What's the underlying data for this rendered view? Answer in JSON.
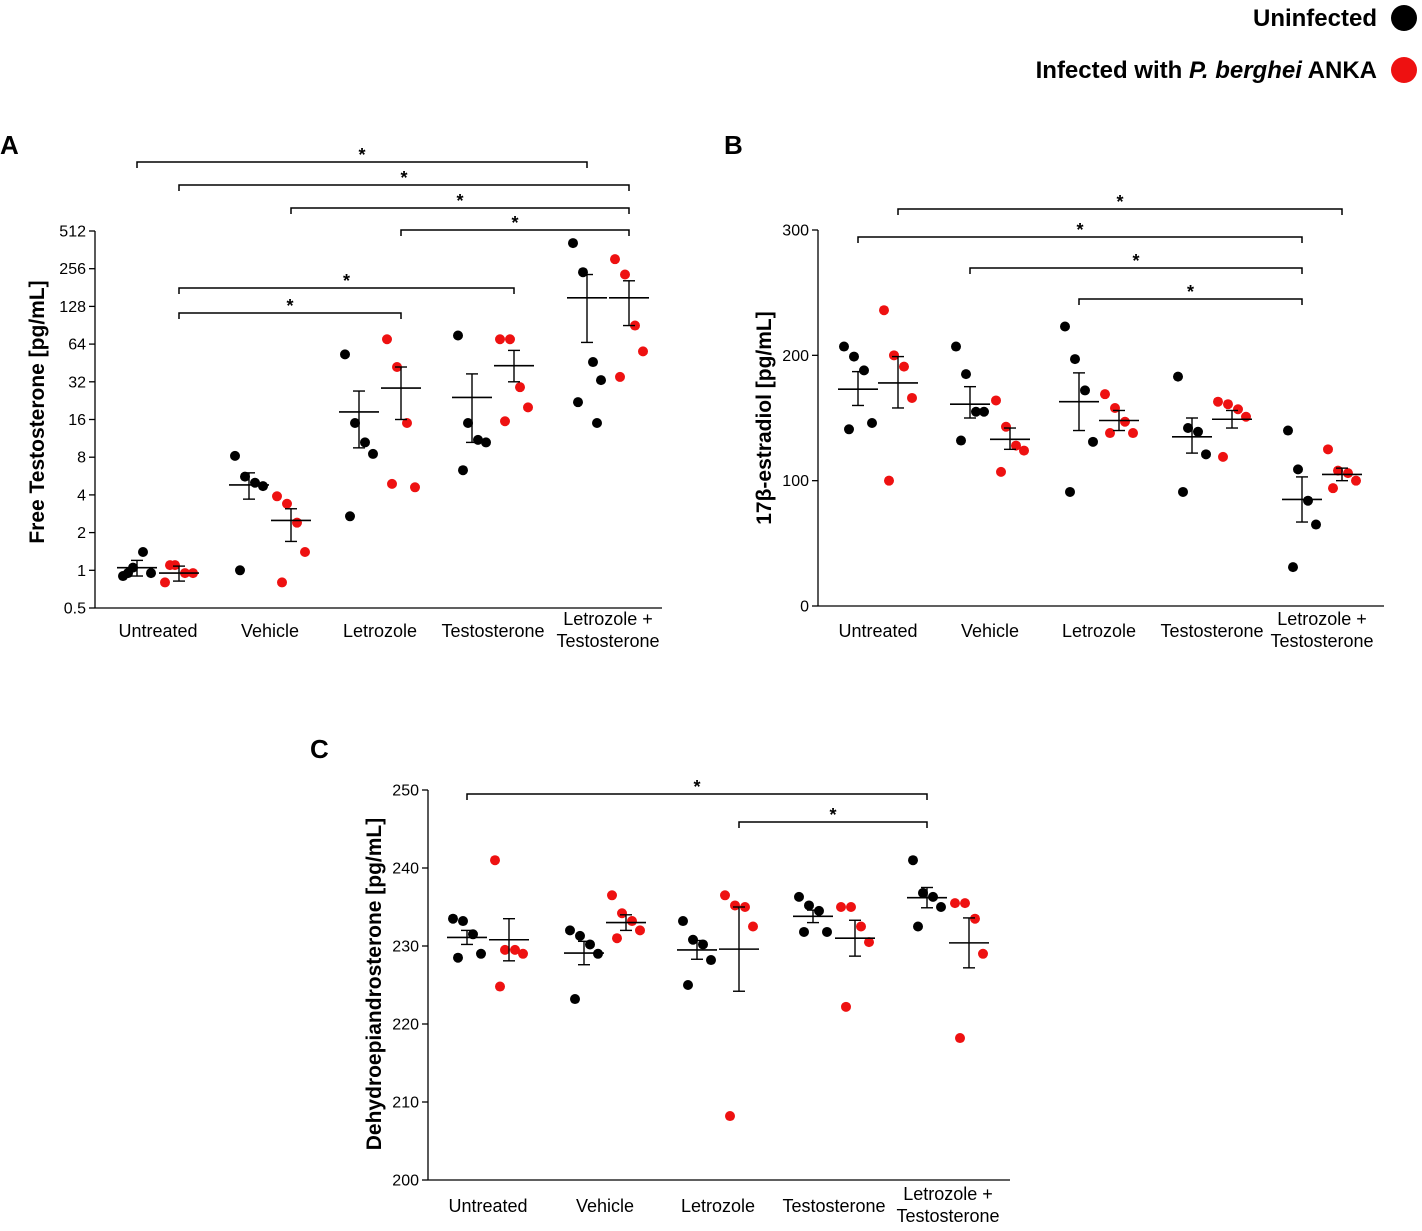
{
  "legend": {
    "uninfected": "Uninfected",
    "infected_prefix": "Infected with ",
    "infected_italic": "P. berghei",
    "infected_suffix": " ANKA",
    "color_uninfected": "#000000",
    "color_infected": "#ee1111"
  },
  "chart_data": [
    {
      "panel": "A",
      "type": "scatter",
      "ylabel": "Free Testosterone [pg/mL]",
      "yscale": "log2",
      "ylim": [
        0.5,
        512
      ],
      "yticks": [
        0.5,
        1,
        2,
        4,
        8,
        16,
        32,
        64,
        128,
        256,
        512
      ],
      "ytick_labels": [
        "0.5",
        "1",
        "2",
        "4",
        "8",
        "16",
        "32",
        "64",
        "128",
        "256",
        "512"
      ],
      "categories": [
        [
          "Untreated"
        ],
        [
          "Vehicle"
        ],
        [
          "Letrozole"
        ],
        [
          "Testosterone"
        ],
        [
          "Letrozole +",
          "Testosterone"
        ]
      ],
      "series": [
        {
          "name": "Uninfected",
          "points": [
            [
              0.9,
              1.05,
              1.4,
              0.95,
              0.95
            ],
            [
              8.2,
              5.6,
              5.0,
              4.7,
              1.0
            ],
            [
              53,
              15,
              10.5,
              8.5,
              2.7
            ],
            [
              75,
              15,
              11,
              10.5,
              6.3
            ],
            [
              410,
              240,
              46,
              33,
              22,
              15
            ]
          ],
          "mean": [
            1.05,
            4.8,
            18.4,
            24,
            150
          ],
          "sem_low": [
            0.9,
            3.7,
            9.5,
            10.5,
            66
          ],
          "sem_high": [
            1.2,
            6.0,
            27,
            37,
            230
          ]
        },
        {
          "name": "Infected with P. berghei ANKA",
          "points": [
            [
              0.8,
              1.1,
              0.95,
              0.95,
              1.1
            ],
            [
              3.9,
              3.4,
              2.4,
              1.4,
              0.8
            ],
            [
              70,
              42,
              15,
              4.6,
              4.9
            ],
            [
              70,
              70,
              29,
              20,
              15.5
            ],
            [
              305,
              230,
              90,
              56,
              35
            ]
          ],
          "mean": [
            0.95,
            2.5,
            28.5,
            43,
            150
          ],
          "sem_low": [
            0.82,
            1.7,
            16,
            32,
            90
          ],
          "sem_high": [
            1.08,
            3.1,
            42,
            57,
            205
          ]
        }
      ],
      "significance": [
        {
          "from": [
            0,
            0
          ],
          "to": [
            4,
            0
          ],
          "label": "*"
        },
        {
          "from": [
            0,
            1
          ],
          "to": [
            4,
            1
          ],
          "label": "*"
        },
        {
          "from": [
            1,
            1
          ],
          "to": [
            4,
            1
          ],
          "label": "*"
        },
        {
          "from": [
            2,
            1
          ],
          "to": [
            4,
            1
          ],
          "label": "*"
        },
        {
          "from": [
            0,
            1
          ],
          "to": [
            3,
            1
          ],
          "label": "*"
        },
        {
          "from": [
            0,
            1
          ],
          "to": [
            2,
            1
          ],
          "label": "*"
        }
      ]
    },
    {
      "panel": "B",
      "type": "scatter",
      "ylabel": "17β-estradiol [pg/mL]",
      "yscale": "linear",
      "ylim": [
        0,
        300
      ],
      "yticks": [
        0,
        100,
        200,
        300
      ],
      "ytick_labels": [
        "0",
        "100",
        "200",
        "300"
      ],
      "categories": [
        [
          "Untreated"
        ],
        [
          "Vehicle"
        ],
        [
          "Letrozole"
        ],
        [
          "Testosterone"
        ],
        [
          "Letrozole +",
          "Testosterone"
        ]
      ],
      "series": [
        {
          "name": "Uninfected",
          "points": [
            [
              207,
              199,
              188,
              146,
              141
            ],
            [
              207,
              185,
              155,
              155,
              132
            ],
            [
              223,
              197,
              172,
              131,
              91
            ],
            [
              183,
              142,
              139,
              121,
              91
            ],
            [
              140,
              109,
              84,
              65,
              31
            ]
          ],
          "mean": [
            173,
            161,
            163,
            135,
            85
          ],
          "sem_low": [
            160,
            150,
            140,
            122,
            67
          ],
          "sem_high": [
            187,
            175,
            186,
            150,
            103
          ]
        },
        {
          "name": "Infected with P. berghei ANKA",
          "points": [
            [
              236,
              200,
              191,
              166,
              100
            ],
            [
              164,
              143,
              128,
              124,
              107
            ],
            [
              169,
              158,
              147,
              138,
              138
            ],
            [
              163,
              161,
              157,
              151,
              119
            ],
            [
              125,
              108,
              106,
              100,
              94
            ]
          ],
          "mean": [
            178,
            133,
            148,
            149,
            105
          ],
          "sem_low": [
            158,
            125,
            140,
            142,
            100
          ],
          "sem_high": [
            199,
            142,
            156,
            156,
            110
          ]
        }
      ],
      "significance": [
        {
          "from": [
            0,
            1
          ],
          "to": [
            4,
            1
          ],
          "label": "*"
        },
        {
          "from": [
            0,
            0
          ],
          "to": [
            4,
            0
          ],
          "label": "*"
        },
        {
          "from": [
            1,
            0
          ],
          "to": [
            4,
            0
          ],
          "label": "*"
        },
        {
          "from": [
            2,
            0
          ],
          "to": [
            4,
            0
          ],
          "label": "*"
        }
      ]
    },
    {
      "panel": "C",
      "type": "scatter",
      "ylabel": "Dehydroepiandrosterone [pg/mL]",
      "yscale": "linear",
      "ylim": [
        200,
        250
      ],
      "yticks": [
        200,
        210,
        220,
        230,
        240,
        250
      ],
      "ytick_labels": [
        "200",
        "210",
        "220",
        "230",
        "240",
        "250"
      ],
      "categories": [
        [
          "Untreated"
        ],
        [
          "Vehicle"
        ],
        [
          "Letrozole"
        ],
        [
          "Testosterone"
        ],
        [
          "Letrozole +",
          "Testosterone"
        ]
      ],
      "series": [
        {
          "name": "Uninfected",
          "points": [
            [
              233.5,
              233.2,
              231.5,
              229.0,
              228.5
            ],
            [
              232.0,
              231.3,
              230.2,
              229.0,
              223.2
            ],
            [
              233.2,
              230.8,
              230.2,
              228.2,
              225.0
            ],
            [
              236.3,
              235.2,
              234.5,
              231.8,
              231.8
            ],
            [
              241.0,
              236.8,
              236.3,
              235.0,
              232.5
            ]
          ],
          "mean": [
            231.1,
            229.1,
            229.5,
            233.8,
            236.2
          ],
          "sem_low": [
            230.2,
            227.6,
            228.3,
            233.0,
            234.9
          ],
          "sem_high": [
            232.0,
            230.6,
            230.7,
            234.6,
            237.5
          ]
        },
        {
          "name": "Infected with P. berghei ANKA",
          "points": [
            [
              241.0,
              229.5,
              229.5,
              229.0,
              224.8
            ],
            [
              236.5,
              234.2,
              233.2,
              232.0,
              231.0
            ],
            [
              236.5,
              235.2,
              235.0,
              232.5,
              208.2
            ],
            [
              235.0,
              235.0,
              232.5,
              230.5,
              222.2
            ],
            [
              235.5,
              235.5,
              233.5,
              229.0,
              218.2
            ]
          ],
          "mean": [
            230.8,
            233.0,
            229.6,
            231.0,
            230.4
          ],
          "sem_low": [
            228.1,
            232.0,
            224.2,
            228.7,
            227.2
          ],
          "sem_high": [
            233.5,
            234.0,
            235.0,
            233.3,
            233.6
          ]
        }
      ],
      "significance": [
        {
          "from": [
            0,
            0
          ],
          "to": [
            4,
            0
          ],
          "label": "*"
        },
        {
          "from": [
            2,
            1
          ],
          "to": [
            4,
            0
          ],
          "label": "*"
        }
      ]
    }
  ]
}
